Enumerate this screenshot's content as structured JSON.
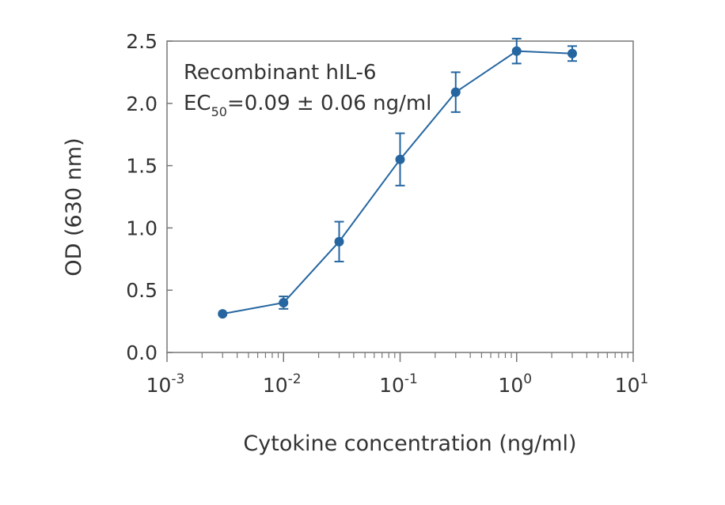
{
  "chart_data": {
    "type": "scatter",
    "xlabel": "Cytokine concentration  (ng/ml)",
    "ylabel": "OD (630 nm)",
    "x_scale": "log",
    "xlim": [
      0.001,
      10
    ],
    "ylim": [
      0,
      2.5
    ],
    "x_ticks": [
      {
        "base": "10",
        "exp": "-3"
      },
      {
        "base": "10",
        "exp": "-2"
      },
      {
        "base": "10",
        "exp": "-1"
      },
      {
        "base": "10",
        "exp": "0"
      },
      {
        "base": "10",
        "exp": "1"
      }
    ],
    "y_ticks": [
      "0.0",
      "0.5",
      "1.0",
      "1.5",
      "2.0",
      "2.5"
    ],
    "grid": false,
    "color": "#2566a0",
    "annotation": {
      "line1": "Recombinant hIL-6",
      "line2_prefix": "EC",
      "line2_sub": "50",
      "line2_suffix": "=0.09 ± 0.06 ng/ml"
    },
    "series": [
      {
        "points": [
          {
            "x": 0.003,
            "y": 0.31,
            "err": 0
          },
          {
            "x": 0.01,
            "y": 0.4,
            "err": 0.05
          },
          {
            "x": 0.03,
            "y": 0.89,
            "err": 0.16
          },
          {
            "x": 0.1,
            "y": 1.55,
            "err": 0.21
          },
          {
            "x": 0.3,
            "y": 2.09,
            "err": 0.16
          },
          {
            "x": 1,
            "y": 2.42,
            "err": 0.1
          },
          {
            "x": 3,
            "y": 2.4,
            "err": 0.06
          }
        ]
      }
    ]
  }
}
